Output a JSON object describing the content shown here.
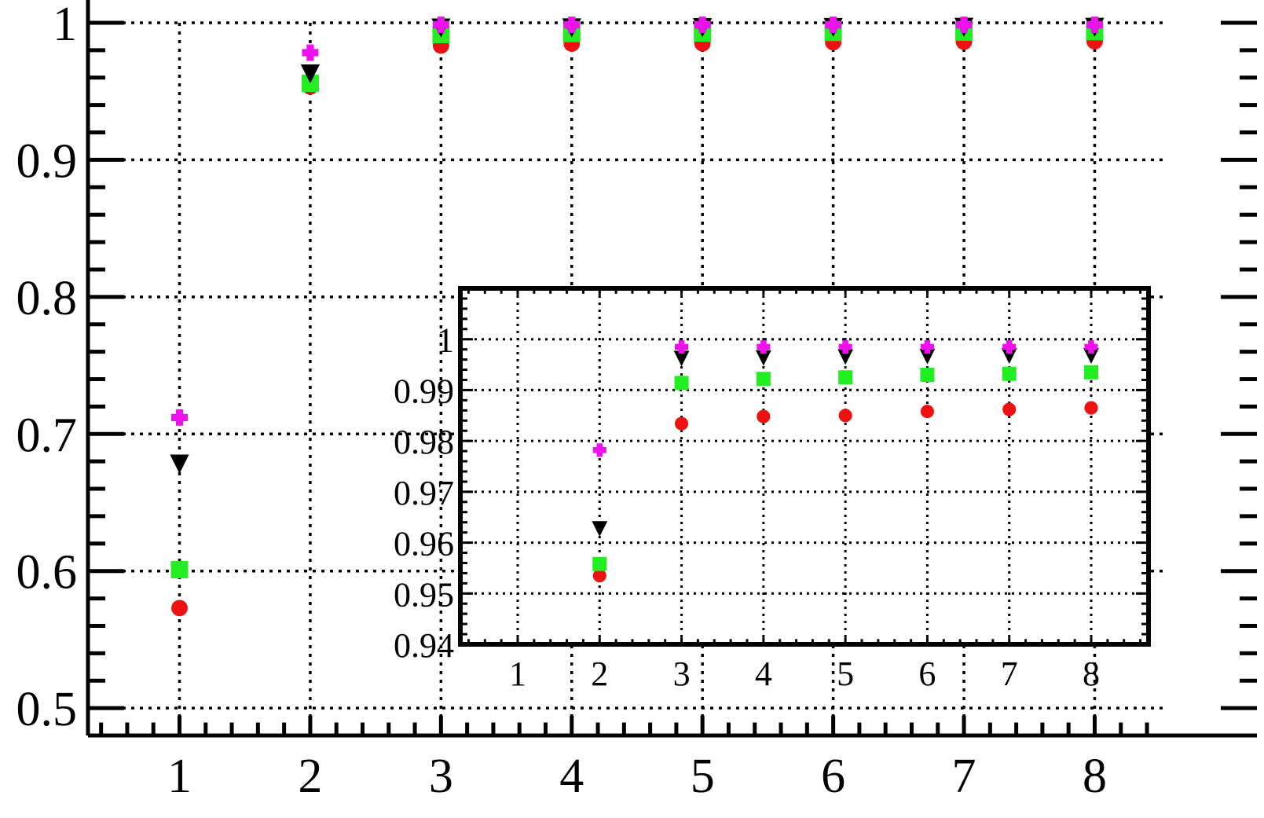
{
  "chart_data": [
    {
      "type": "scatter",
      "title": "",
      "xlabel": "",
      "ylabel": "",
      "xlim": [
        0.3,
        8.55
      ],
      "ylim": [
        0.48,
        1.0
      ],
      "x_ticks": [
        1,
        2,
        3,
        4,
        5,
        6,
        7,
        8
      ],
      "y_ticks": [
        0.5,
        0.6,
        0.7,
        0.8,
        0.9,
        1.0
      ],
      "x_tick_labels": [
        "1",
        "2",
        "3",
        "4",
        "5",
        "6",
        "7",
        "8"
      ],
      "y_tick_labels": [
        "0.5",
        "0.6",
        "0.7",
        "0.8",
        "0.9",
        "1"
      ],
      "grid": true,
      "legend": "none",
      "series": [
        {
          "marker": "circle",
          "color": "#ee1111",
          "x": [
            1,
            2,
            3,
            4,
            5,
            6,
            7,
            8
          ],
          "y": [
            0.573,
            0.9535,
            0.9834,
            0.9848,
            0.985,
            0.9858,
            0.9862,
            0.9865
          ]
        },
        {
          "marker": "square",
          "color": "#22ee22",
          "x": [
            1,
            2,
            3,
            4,
            5,
            6,
            7,
            8
          ],
          "y": [
            0.601,
            0.9558,
            0.9914,
            0.9922,
            0.9925,
            0.993,
            0.9932,
            0.9935
          ]
        },
        {
          "marker": "triangle-down",
          "color": "#000000",
          "x": [
            1,
            2,
            3,
            4,
            5,
            6,
            7,
            8
          ],
          "y": [
            0.678,
            0.9627,
            0.9962,
            0.9963,
            0.9965,
            0.9966,
            0.9967,
            0.9967
          ]
        },
        {
          "marker": "plus",
          "color": "#ee11ee",
          "x": [
            1,
            2,
            3,
            4,
            5,
            6,
            7,
            8
          ],
          "y": [
            0.712,
            0.9782,
            0.9985,
            0.9985,
            0.9985,
            0.9985,
            0.9985,
            0.9985
          ]
        }
      ]
    },
    {
      "type": "scatter",
      "title": "",
      "xlabel": "",
      "ylabel": "",
      "xlim": [
        0.3,
        8.7
      ],
      "ylim": [
        0.94,
        1.01
      ],
      "x_ticks": [
        1,
        2,
        3,
        4,
        5,
        6,
        7,
        8
      ],
      "y_ticks": [
        0.94,
        0.95,
        0.96,
        0.97,
        0.98,
        0.99,
        1.0
      ],
      "x_tick_labels": [
        "1",
        "2",
        "3",
        "4",
        "5",
        "6",
        "7",
        "8"
      ],
      "y_tick_labels": [
        "0.94",
        "0.95",
        "0.96",
        "0.97",
        "0.98",
        "0.99",
        "1"
      ],
      "grid": true,
      "legend": "none",
      "series": [
        {
          "marker": "circle",
          "color": "#ee1111",
          "x": [
            2,
            3,
            4,
            5,
            6,
            7,
            8
          ],
          "y": [
            0.9535,
            0.9834,
            0.9848,
            0.985,
            0.9858,
            0.9862,
            0.9865
          ]
        },
        {
          "marker": "square",
          "color": "#22ee22",
          "x": [
            2,
            3,
            4,
            5,
            6,
            7,
            8
          ],
          "y": [
            0.9558,
            0.9914,
            0.9922,
            0.9925,
            0.993,
            0.9932,
            0.9935
          ]
        },
        {
          "marker": "triangle-down",
          "color": "#000000",
          "x": [
            2,
            3,
            4,
            5,
            6,
            7,
            8
          ],
          "y": [
            0.9627,
            0.9962,
            0.9963,
            0.9965,
            0.9966,
            0.9967,
            0.9967
          ]
        },
        {
          "marker": "plus",
          "color": "#ee11ee",
          "x": [
            2,
            3,
            4,
            5,
            6,
            7,
            8
          ],
          "y": [
            0.9782,
            0.9985,
            0.9985,
            0.9985,
            0.9985,
            0.9985,
            0.9985
          ]
        }
      ]
    }
  ]
}
